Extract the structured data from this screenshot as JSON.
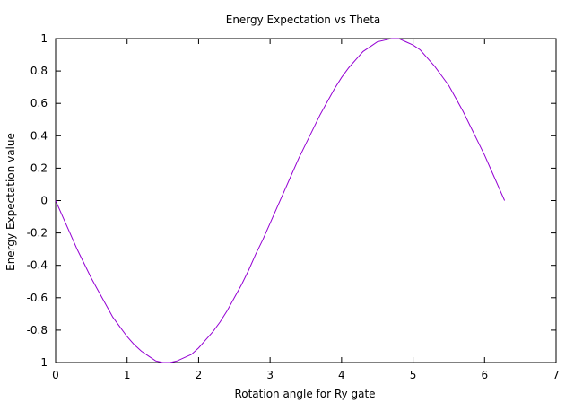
{
  "chart_data": {
    "type": "line",
    "title": "Energy Expectation vs Theta",
    "xlabel": "Rotation angle for Ry gate",
    "ylabel": "Energy Expectation value",
    "xlim": [
      0,
      7
    ],
    "ylim": [
      -1,
      1
    ],
    "xticks": [
      0,
      1,
      2,
      3,
      4,
      5,
      6,
      7
    ],
    "yticks": [
      -1,
      -0.8,
      -0.6,
      -0.4,
      -0.2,
      0,
      0.2,
      0.4,
      0.6,
      0.8,
      1
    ],
    "xtick_labels": [
      "0",
      "1",
      "2",
      "3",
      "4",
      "5",
      "6",
      "7"
    ],
    "ytick_labels": [
      "-1",
      "-0.8",
      "-0.6",
      "-0.4",
      "-0.2",
      "0",
      "0.2",
      "0.4",
      "0.6",
      "0.8",
      "1"
    ],
    "grid": false,
    "legend": "none",
    "series": [
      {
        "color": "#9400d3",
        "x": [
          0,
          0.1,
          0.2,
          0.3,
          0.4,
          0.5,
          0.6,
          0.7,
          0.8,
          0.9,
          1.0,
          1.1,
          1.2,
          1.3,
          1.4,
          1.5,
          1.6,
          1.7,
          1.8,
          1.9,
          2.0,
          2.1,
          2.2,
          2.3,
          2.4,
          2.5,
          2.6,
          2.7,
          2.8,
          2.9,
          3.0,
          3.1,
          3.2,
          3.3,
          3.4,
          3.5,
          3.6,
          3.7,
          3.8,
          3.9,
          4.0,
          4.1,
          4.2,
          4.3,
          4.4,
          4.5,
          4.6,
          4.7,
          4.8,
          4.9,
          5.0,
          5.1,
          5.2,
          5.3,
          5.4,
          5.5,
          5.6,
          5.7,
          5.8,
          5.9,
          6.0,
          6.1,
          6.2,
          6.28
        ],
        "y": [
          0,
          -0.1,
          -0.2,
          -0.3,
          -0.39,
          -0.48,
          -0.56,
          -0.64,
          -0.72,
          -0.78,
          -0.84,
          -0.89,
          -0.93,
          -0.96,
          -0.99,
          -1.0,
          -1.0,
          -0.99,
          -0.97,
          -0.95,
          -0.91,
          -0.86,
          -0.81,
          -0.75,
          -0.68,
          -0.6,
          -0.52,
          -0.43,
          -0.33,
          -0.24,
          -0.14,
          -0.04,
          0.06,
          0.16,
          0.26,
          0.35,
          0.44,
          0.53,
          0.61,
          0.69,
          0.76,
          0.82,
          0.87,
          0.92,
          0.95,
          0.98,
          0.99,
          1.0,
          1.0,
          0.98,
          0.96,
          0.93,
          0.88,
          0.83,
          0.77,
          0.71,
          0.63,
          0.55,
          0.46,
          0.37,
          0.28,
          0.18,
          0.08,
          0
        ]
      }
    ]
  }
}
